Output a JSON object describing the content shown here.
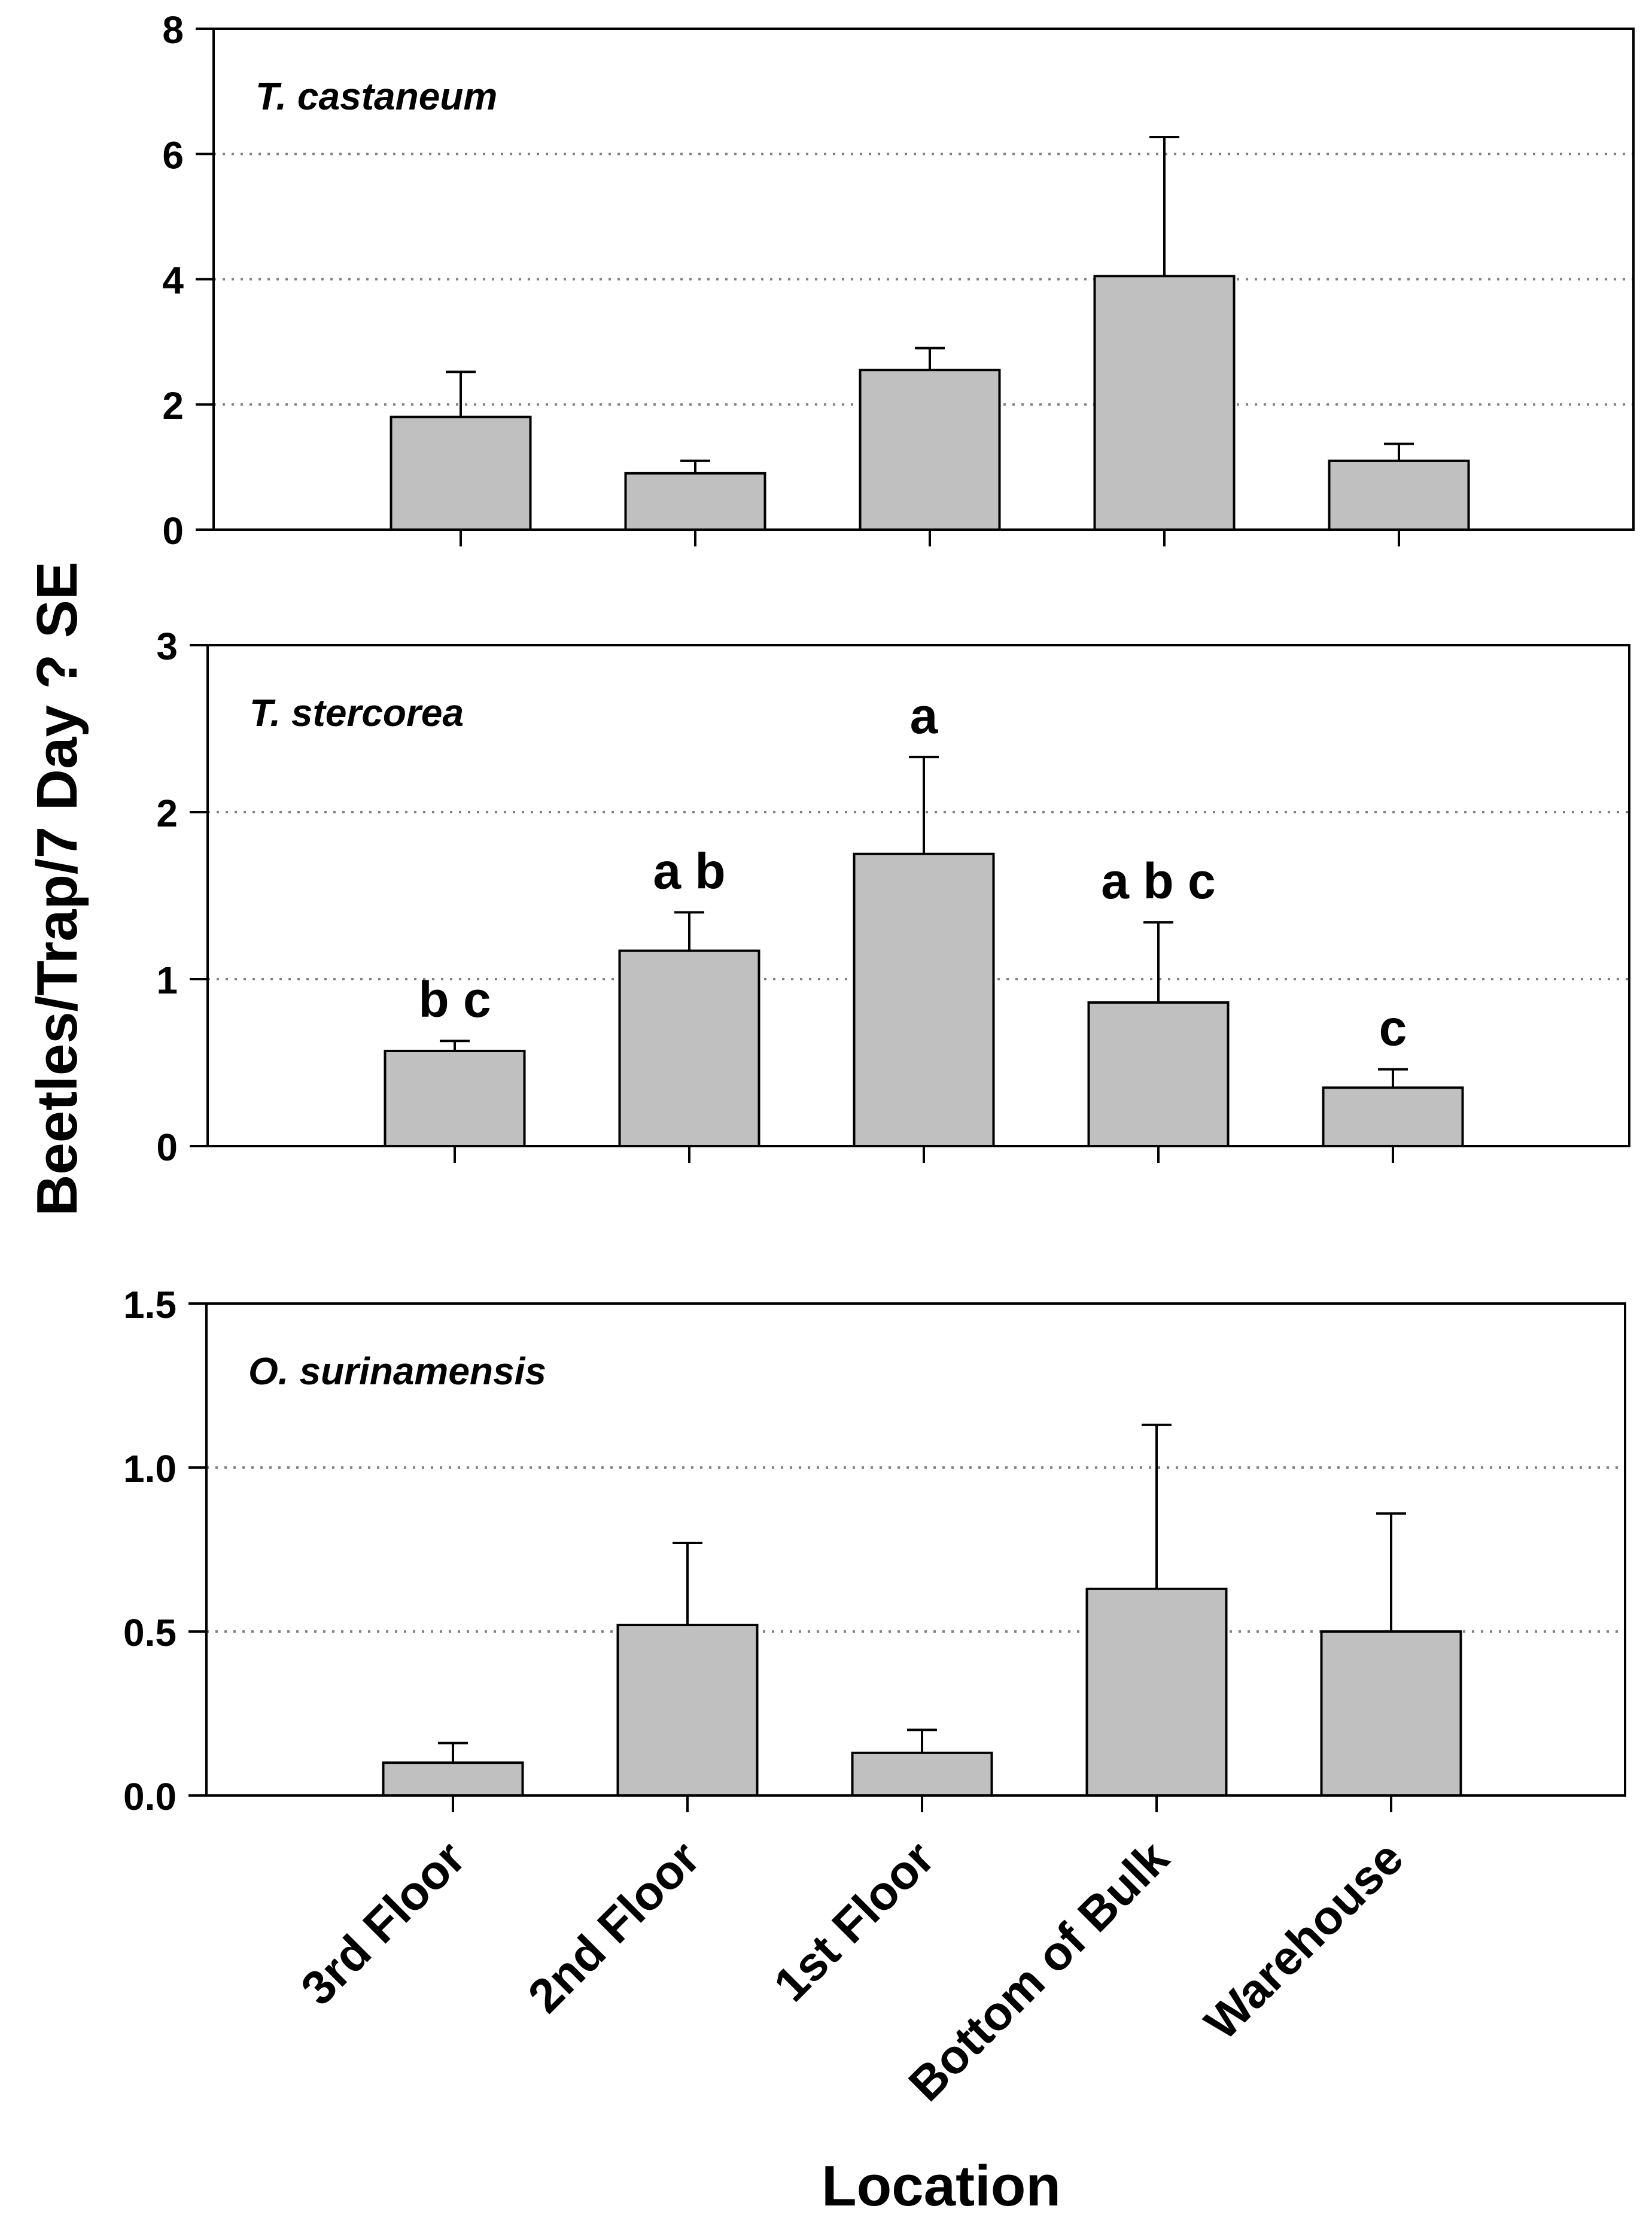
{
  "chart_data": {
    "type": "bar",
    "ylabel": "Beetles/Trap/7 Day ? SE",
    "xlabel": "Location",
    "categories": [
      "3rd Floor",
      "2nd Floor",
      "1st Floor",
      "Bottom of Bulk",
      "Warehouse"
    ],
    "bar_color": "#c0c0c0",
    "grid": "dotted horizontal",
    "panels": [
      {
        "title": "T. castaneum",
        "ylim": [
          0,
          8
        ],
        "yticks": [
          "0",
          "2",
          "4",
          "6",
          "8"
        ],
        "ytick_values": [
          0,
          2,
          4,
          6,
          8
        ],
        "values": [
          1.8,
          0.9,
          2.55,
          4.05,
          1.1
        ],
        "errors": [
          0.72,
          0.2,
          0.35,
          2.22,
          0.27
        ],
        "letters": [
          "",
          "",
          "",
          "",
          ""
        ]
      },
      {
        "title": "T. stercorea",
        "ylim": [
          0,
          3
        ],
        "yticks": [
          "0",
          "1",
          "2",
          "3"
        ],
        "ytick_values": [
          0,
          1,
          2,
          3
        ],
        "values": [
          0.57,
          1.17,
          1.75,
          0.86,
          0.35
        ],
        "errors": [
          0.06,
          0.23,
          0.58,
          0.48,
          0.11
        ],
        "letters": [
          "b c",
          "a b",
          "a",
          "a b c",
          "c"
        ]
      },
      {
        "title": "O. surinamensis",
        "ylim": [
          0,
          1.5
        ],
        "yticks": [
          "0.0",
          "0.5",
          "1.0",
          "1.5"
        ],
        "ytick_values": [
          0,
          0.5,
          1.0,
          1.5
        ],
        "values": [
          0.1,
          0.52,
          0.13,
          0.63,
          0.5
        ],
        "errors": [
          0.06,
          0.25,
          0.07,
          0.5,
          0.36
        ],
        "letters": [
          "",
          "",
          "",
          "",
          ""
        ]
      }
    ]
  }
}
